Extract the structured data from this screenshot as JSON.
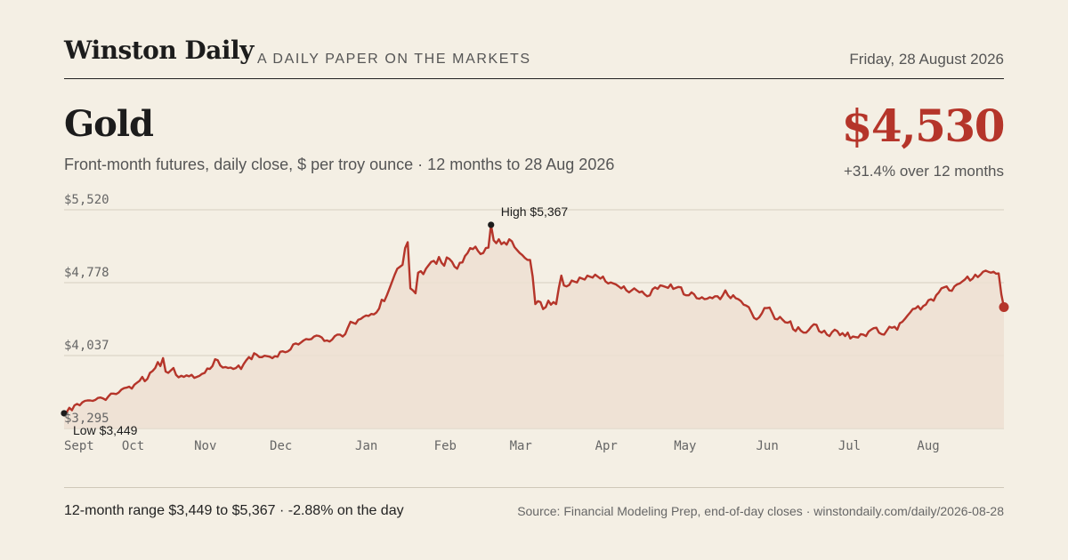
{
  "header": {
    "brand": "Winston Daily",
    "tagline": "A DAILY PAPER ON THE MARKETS",
    "date": "Friday, 28 August 2026"
  },
  "headline": {
    "title": "Gold",
    "subtitle": "Front-month futures, daily close, $ per troy ounce · 12 months to 28 Aug 2026",
    "price": "$4,530",
    "change": "+31.4% over 12 months"
  },
  "footer": {
    "range_text": "12-month range $3,449 to $5,367 · -2.88% on the day",
    "source": "Source: Financial Modeling Prep, end-of-day closes · winstondaily.com/daily/2026-08-28"
  },
  "colors": {
    "accent": "#b5352a",
    "fill": "#eddfd2",
    "grid": "#d6cfc0",
    "text": "#555555"
  },
  "chart_data": {
    "type": "area",
    "ylim": [
      3295,
      5520
    ],
    "y_ticks": [
      {
        "value": 5520,
        "label": "$5,520"
      },
      {
        "value": 4778,
        "label": "$4,778"
      },
      {
        "value": 4037,
        "label": "$4,037"
      },
      {
        "value": 3295,
        "label": "$3,295"
      }
    ],
    "x_ticks": [
      "Sept",
      "Oct",
      "Nov",
      "Dec",
      "Jan",
      "Feb",
      "Mar",
      "Apr",
      "May",
      "Jun",
      "Jul",
      "Aug"
    ],
    "x_tick_positions": [
      0,
      21,
      43,
      66,
      92,
      116,
      139,
      165,
      189,
      214,
      239,
      263
    ],
    "series": [
      {
        "values": [
          3449,
          3460,
          3505,
          3480,
          3530,
          3545,
          3530,
          3560,
          3575,
          3580,
          3580,
          3575,
          3585,
          3605,
          3610,
          3600,
          3585,
          3620,
          3650,
          3650,
          3645,
          3660,
          3690,
          3705,
          3710,
          3720,
          3700,
          3740,
          3760,
          3780,
          3820,
          3775,
          3800,
          3860,
          3880,
          3910,
          3970,
          3930,
          4010,
          3875,
          3860,
          3885,
          3910,
          3840,
          3815,
          3830,
          3820,
          3835,
          3825,
          3840,
          3810,
          3820,
          3830,
          3850,
          3860,
          3905,
          3900,
          3930,
          4000,
          3990,
          3935,
          3915,
          3920,
          3910,
          3915,
          3900,
          3910,
          3935,
          3900,
          3950,
          3990,
          4020,
          4000,
          4060,
          4045,
          4020,
          4020,
          4035,
          4030,
          4025,
          4010,
          4030,
          4025,
          4075,
          4080,
          4070,
          4080,
          4100,
          4150,
          4160,
          4150,
          4170,
          4190,
          4205,
          4200,
          4205,
          4230,
          4240,
          4235,
          4220,
          4185,
          4190,
          4180,
          4200,
          4235,
          4250,
          4250,
          4230,
          4255,
          4320,
          4380,
          4370,
          4360,
          4400,
          4410,
          4430,
          4445,
          4440,
          4460,
          4455,
          4475,
          4515,
          4605,
          4590,
          4650,
          4720,
          4790,
          4860,
          4920,
          4940,
          4960,
          5130,
          5190,
          4720,
          4700,
          4670,
          4880,
          4895,
          4865,
          4920,
          4955,
          4990,
          5000,
          4970,
          5040,
          4980,
          4950,
          5035,
          5020,
          4990,
          4940,
          4920,
          4980,
          4985,
          5050,
          5080,
          5130,
          5120,
          5145,
          5100,
          5070,
          5080,
          5130,
          5135,
          5367,
          5210,
          5180,
          5220,
          5170,
          5190,
          5165,
          5220,
          5200,
          5140,
          5110,
          5080,
          5060,
          5030,
          5010,
          5010,
          4840,
          4560,
          4590,
          4580,
          4510,
          4530,
          4595,
          4555,
          4580,
          4560,
          4720,
          4850,
          4750,
          4740,
          4755,
          4800,
          4790,
          4780,
          4830,
          4820,
          4810,
          4850,
          4840,
          4830,
          4860,
          4840,
          4820,
          4840,
          4790,
          4770,
          4780,
          4770,
          4760,
          4740,
          4720,
          4740,
          4700,
          4680,
          4700,
          4720,
          4700,
          4680,
          4690,
          4660,
          4640,
          4650,
          4710,
          4730,
          4715,
          4750,
          4745,
          4735,
          4725,
          4760,
          4715,
          4725,
          4735,
          4730,
          4660,
          4650,
          4650,
          4680,
          4660,
          4620,
          4615,
          4630,
          4610,
          4615,
          4630,
          4620,
          4640,
          4640,
          4610,
          4650,
          4700,
          4650,
          4620,
          4650,
          4620,
          4610,
          4590,
          4555,
          4545,
          4530,
          4475,
          4420,
          4405,
          4425,
          4465,
          4520,
          4520,
          4525,
          4470,
          4410,
          4405,
          4430,
          4400,
          4375,
          4370,
          4385,
          4305,
          4285,
          4325,
          4290,
          4270,
          4270,
          4295,
          4330,
          4355,
          4350,
          4285,
          4270,
          4290,
          4250,
          4235,
          4275,
          4300,
          4285,
          4245,
          4265,
          4235,
          4270,
          4210,
          4230,
          4225,
          4220,
          4255,
          4250,
          4235,
          4280,
          4300,
          4315,
          4320,
          4270,
          4255,
          4250,
          4290,
          4330,
          4320,
          4330,
          4300,
          4365,
          4380,
          4410,
          4445,
          4475,
          4510,
          4515,
          4540,
          4505,
          4540,
          4555,
          4600,
          4610,
          4595,
          4650,
          4680,
          4720,
          4730,
          4740,
          4700,
          4695,
          4740,
          4760,
          4770,
          4790,
          4810,
          4840,
          4800,
          4820,
          4860,
          4835,
          4860,
          4890,
          4900,
          4890,
          4880,
          4890,
          4870,
          4872,
          4660,
          4530
        ]
      }
    ],
    "annotations": [
      {
        "label": "High $5,367",
        "value": 5367
      },
      {
        "label": "Low $3,449",
        "value": 3449
      }
    ]
  }
}
